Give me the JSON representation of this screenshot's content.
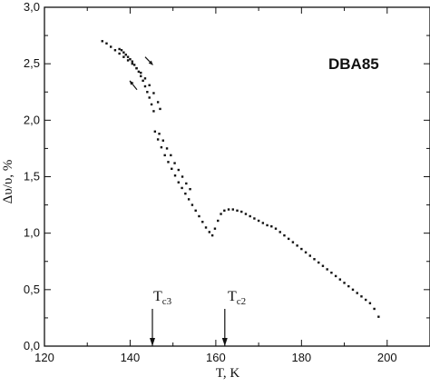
{
  "chart_data": {
    "type": "scatter",
    "title": "DBA85",
    "xlabel": "T, K",
    "ylabel": "Δυ/υ, %",
    "xlim": [
      120,
      210
    ],
    "ylim": [
      0.0,
      3.0
    ],
    "x_ticks": [
      "120",
      "140",
      "160",
      "180",
      "200"
    ],
    "y_ticks": [
      "0,0",
      "0,5",
      "1,0",
      "1,5",
      "2,0",
      "2,5",
      "3,0"
    ],
    "grid": false,
    "annotations": [
      {
        "main": "T",
        "sub": "c3",
        "x": 145.2
      },
      {
        "main": "T",
        "sub": "c2",
        "x": 162.1
      }
    ],
    "series": [
      {
        "x": [
          133.5,
          134.5,
          135.5,
          136.5,
          137.5,
          138.5,
          139.5,
          140.5,
          141.5,
          142.5,
          143.5,
          144.5,
          145.5,
          146.5,
          147.0
        ],
        "y": [
          2.7,
          2.68,
          2.65,
          2.62,
          2.59,
          2.56,
          2.53,
          2.5,
          2.46,
          2.42,
          2.37,
          2.31,
          2.24,
          2.16,
          2.1
        ]
      },
      {
        "x": [
          145.5,
          145.0,
          144.5,
          144.0,
          143.5,
          143.0,
          142.5,
          142.0,
          141.5,
          141.0,
          140.5,
          140.0,
          139.5,
          139.0,
          138.5,
          138.0,
          137.5
        ],
        "y": [
          2.08,
          2.14,
          2.2,
          2.25,
          2.3,
          2.35,
          2.39,
          2.43,
          2.46,
          2.49,
          2.52,
          2.54,
          2.56,
          2.58,
          2.6,
          2.62,
          2.63
        ]
      },
      {
        "x": [
          145.8,
          146.5,
          147.3,
          148.1,
          148.9,
          149.7,
          150.5,
          151.3,
          152.1,
          152.9,
          153.7,
          154.5,
          155.3,
          156.1,
          156.9,
          157.7,
          158.5,
          159.2
        ],
        "y": [
          1.9,
          1.83,
          1.76,
          1.69,
          1.63,
          1.57,
          1.51,
          1.45,
          1.4,
          1.35,
          1.3,
          1.25,
          1.2,
          1.15,
          1.1,
          1.05,
          1.01,
          0.98
        ]
      },
      {
        "x": [
          146.8,
          147.7,
          148.6,
          149.5,
          150.4,
          151.3,
          152.2,
          153.1,
          154.0
        ],
        "y": [
          1.88,
          1.82,
          1.75,
          1.69,
          1.62,
          1.56,
          1.5,
          1.44,
          1.39
        ]
      },
      {
        "x": [
          159.8,
          160.5,
          161.2,
          162.0,
          163.0,
          164.0,
          165.0,
          166.0,
          167.0,
          168.0,
          169.0,
          170.0,
          171.0,
          172.0,
          173.0,
          174.0,
          175.0,
          176.0,
          177.0,
          178.0,
          179.0,
          180.0,
          181.0,
          182.0,
          183.0,
          184.0,
          185.0,
          186.0,
          187.0,
          188.0,
          189.0,
          190.0,
          191.0,
          192.0,
          193.0,
          194.0,
          195.0,
          196.0,
          197.0,
          198.0
        ],
        "y": [
          1.04,
          1.11,
          1.17,
          1.2,
          1.21,
          1.21,
          1.2,
          1.19,
          1.17,
          1.15,
          1.13,
          1.11,
          1.09,
          1.07,
          1.06,
          1.04,
          1.01,
          0.98,
          0.95,
          0.92,
          0.89,
          0.86,
          0.83,
          0.8,
          0.77,
          0.74,
          0.71,
          0.68,
          0.65,
          0.62,
          0.59,
          0.56,
          0.53,
          0.5,
          0.47,
          0.44,
          0.41,
          0.38,
          0.33,
          0.26
        ]
      }
    ],
    "arrows": [
      {
        "direction": "heating",
        "x1": 143.5,
        "y1": 2.56,
        "x2": 145.3,
        "y2": 2.49
      },
      {
        "direction": "cooling",
        "x1": 141.6,
        "y1": 2.27,
        "x2": 139.9,
        "y2": 2.35
      }
    ]
  }
}
